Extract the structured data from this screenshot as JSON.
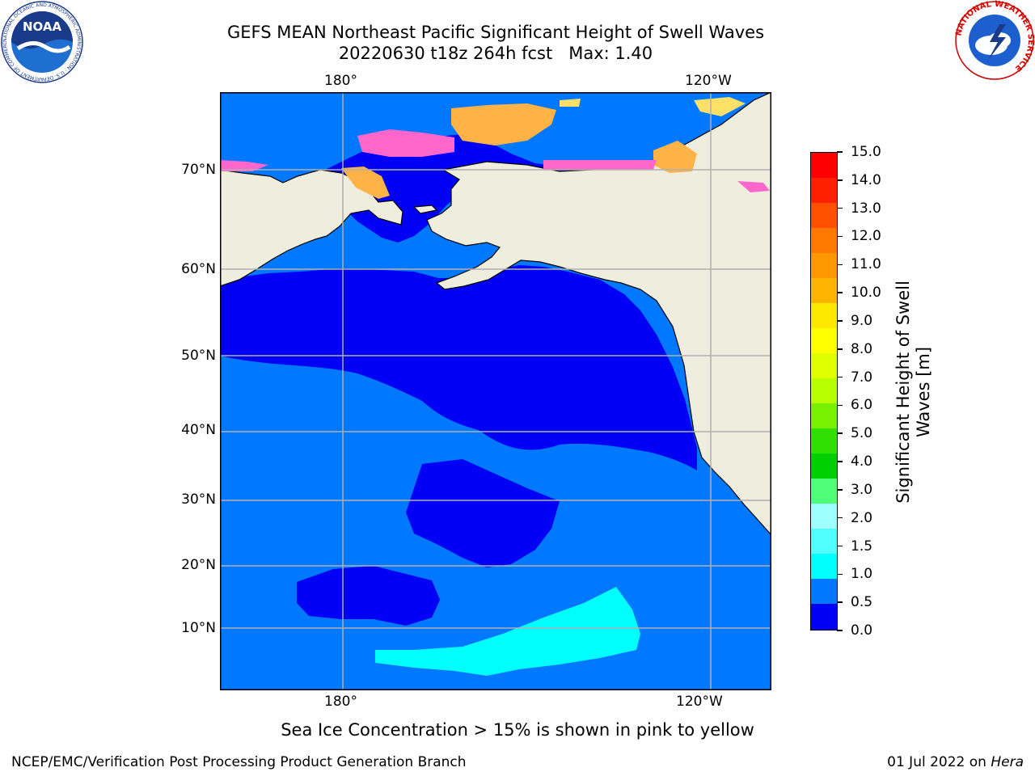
{
  "title": {
    "line1": "GEFS MEAN Northeast Pacific Significant Height of Swell Waves",
    "line2": "20220630 t18z 264h fcst   Max: 1.40"
  },
  "map": {
    "lon_labels_top": [
      "180°",
      "120°W"
    ],
    "lon_labels_bottom": [
      "180°",
      "120°W"
    ],
    "lat_labels": [
      "70°N",
      "60°N",
      "50°N",
      "40°N",
      "30°N",
      "20°N",
      "10°N"
    ],
    "colors": {
      "land": "#efeddd",
      "ocean_low": "#0000f5",
      "ocean_mid": "#0078ff",
      "ocean_cyan": "#00ffff",
      "ice_pink": "#ff66cc",
      "ice_orange": "#ffb347",
      "ice_yellow": "#ffe066",
      "grid": "#b0b0b0"
    }
  },
  "colorbar": {
    "title_line1": "Significant Height of Swell",
    "title_line2": "Waves [m]",
    "ticks": [
      "15.0",
      "14.0",
      "13.0",
      "12.0",
      "11.0",
      "10.0",
      "9.0",
      "8.0",
      "7.0",
      "6.0",
      "5.0",
      "4.0",
      "3.0",
      "2.0",
      "1.5",
      "1.0",
      "0.5",
      "0.0"
    ],
    "colors_top_to_bottom": [
      "#ff0000",
      "#ff2000",
      "#ff5000",
      "#ff7800",
      "#ff9800",
      "#ffb400",
      "#ffe800",
      "#ffff00",
      "#e0ff00",
      "#b8ff00",
      "#78f000",
      "#30e000",
      "#00d000",
      "#50ff78",
      "#a0ffff",
      "#50ffff",
      "#00ffff",
      "#0078ff",
      "#0000f5"
    ]
  },
  "subtitle": "Sea Ice Concentration > 15% is shown in pink to yellow",
  "footer": {
    "credit": "NCEP/EMC/Verification Post Processing Product Generation Branch",
    "date_prefix": "01 Jul 2022 on ",
    "date_machine": "Hera"
  },
  "logos": {
    "noaa_text": "NOAA",
    "noaa_ring": "NATIONAL OCEANIC AND ATMOSPHERIC ADMINISTRATION · U.S. DEPARTMENT OF COMMERCE",
    "nws_ring": "NATIONAL WEATHER SERVICE"
  }
}
